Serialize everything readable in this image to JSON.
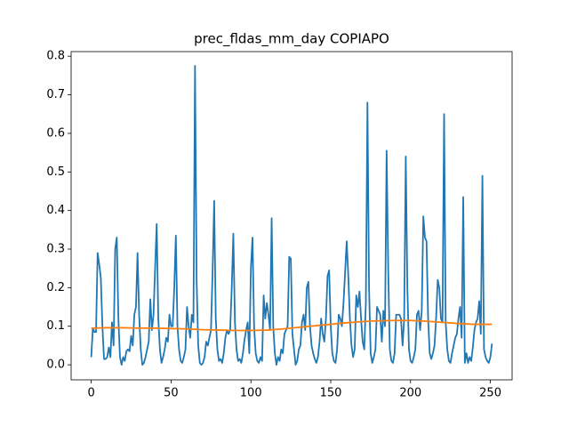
{
  "chart_data": {
    "type": "line",
    "title": "prec_fldas_mm_day COPIAPO",
    "xlim": [
      -12.6,
      263.6
    ],
    "xticks": [
      0,
      50,
      100,
      150,
      200,
      250
    ],
    "ylim": [
      -0.039,
      0.812
    ],
    "yticks": [
      {
        "value": 0,
        "label": "0.0"
      },
      0.1,
      0.2,
      0.3,
      0.4,
      0.5,
      0.6,
      0.7,
      0.8
    ],
    "series": [
      {
        "color": "#1f77b4",
        "x": [
          0,
          1,
          2,
          3,
          4,
          5,
          6,
          7,
          8,
          9,
          10,
          11,
          12,
          13,
          14,
          15,
          16,
          17,
          18,
          19,
          20,
          21,
          22,
          23,
          24,
          25,
          26,
          27,
          28,
          29,
          30,
          31,
          32,
          33,
          34,
          35,
          36,
          37,
          38,
          39,
          40,
          41,
          42,
          43,
          44,
          45,
          46,
          47,
          48,
          49,
          50,
          51,
          52,
          53,
          54,
          55,
          56,
          57,
          58,
          59,
          60,
          61,
          62,
          63,
          64,
          65,
          66,
          67,
          68,
          69,
          70,
          71,
          72,
          73,
          74,
          75,
          76,
          77,
          78,
          79,
          80,
          81,
          82,
          83,
          84,
          85,
          86,
          87,
          88,
          89,
          90,
          91,
          92,
          93,
          94,
          95,
          96,
          97,
          98,
          99,
          100,
          101,
          102,
          103,
          104,
          105,
          106,
          107,
          108,
          109,
          110,
          111,
          112,
          113,
          114,
          115,
          116,
          117,
          118,
          119,
          120,
          121,
          122,
          123,
          124,
          125,
          126,
          127,
          128,
          129,
          130,
          131,
          132,
          133,
          134,
          135,
          136,
          137,
          138,
          139,
          140,
          141,
          142,
          143,
          144,
          145,
          146,
          147,
          148,
          149,
          150,
          151,
          152,
          153,
          154,
          155,
          156,
          157,
          158,
          159,
          160,
          161,
          162,
          163,
          164,
          165,
          166,
          167,
          168,
          169,
          170,
          171,
          172,
          173,
          174,
          175,
          176,
          177,
          178,
          179,
          180,
          181,
          182,
          183,
          184,
          185,
          186,
          187,
          188,
          189,
          190,
          191,
          192,
          193,
          194,
          195,
          196,
          197,
          198,
          199,
          200,
          201,
          202,
          203,
          204,
          205,
          206,
          207,
          208,
          209,
          210,
          211,
          212,
          213,
          214,
          215,
          216,
          217,
          218,
          219,
          220,
          221,
          222,
          223,
          224,
          225,
          226,
          227,
          228,
          229,
          230,
          231,
          232,
          233,
          234,
          235,
          236,
          237,
          238,
          239,
          240,
          241,
          242,
          243,
          244,
          245,
          246,
          247,
          248,
          249,
          250,
          251
        ],
        "values": [
          0.02,
          0.095,
          0.085,
          0.085,
          0.29,
          0.26,
          0.225,
          0.1,
          0.015,
          0.015,
          0.02,
          0.045,
          0.02,
          0.11,
          0.05,
          0.3,
          0.33,
          0.12,
          0.02,
          0.0,
          0.02,
          0.01,
          0.035,
          0.04,
          0.035,
          0.075,
          0.05,
          0.13,
          0.15,
          0.29,
          0.13,
          0.04,
          0.0,
          0.005,
          0.02,
          0.04,
          0.06,
          0.17,
          0.09,
          0.13,
          0.25,
          0.365,
          0.12,
          0.04,
          0.005,
          0.02,
          0.04,
          0.07,
          0.06,
          0.13,
          0.1,
          0.1,
          0.2,
          0.335,
          0.1,
          0.04,
          0.01,
          0.005,
          0.02,
          0.04,
          0.15,
          0.1,
          0.07,
          0.13,
          0.11,
          0.775,
          0.22,
          0.05,
          0.005,
          0.0,
          0.005,
          0.02,
          0.06,
          0.05,
          0.07,
          0.09,
          0.24,
          0.425,
          0.12,
          0.04,
          0.01,
          0.015,
          0.005,
          0.03,
          0.07,
          0.09,
          0.08,
          0.09,
          0.2,
          0.34,
          0.11,
          0.04,
          0.01,
          0.015,
          0.005,
          0.03,
          0.065,
          0.09,
          0.11,
          0.03,
          0.25,
          0.33,
          0.1,
          0.03,
          0.01,
          0.005,
          0.02,
          0.01,
          0.18,
          0.12,
          0.16,
          0.13,
          0.09,
          0.38,
          0.1,
          0.03,
          0.0,
          0.02,
          0.01,
          0.04,
          0.03,
          0.08,
          0.09,
          0.1,
          0.28,
          0.275,
          0.08,
          0.04,
          0.0,
          0.01,
          0.04,
          0.05,
          0.11,
          0.13,
          0.09,
          0.2,
          0.215,
          0.1,
          0.05,
          0.03,
          0.015,
          0.005,
          0.02,
          0.06,
          0.12,
          0.08,
          0.06,
          0.12,
          0.23,
          0.245,
          0.1,
          0.03,
          0.01,
          0.005,
          0.04,
          0.13,
          0.12,
          0.1,
          0.16,
          0.24,
          0.32,
          0.23,
          0.12,
          0.05,
          0.02,
          0.04,
          0.18,
          0.15,
          0.19,
          0.12,
          0.06,
          0.04,
          0.16,
          0.68,
          0.2,
          0.03,
          0.005,
          0.02,
          0.04,
          0.15,
          0.14,
          0.13,
          0.06,
          0.14,
          0.1,
          0.555,
          0.25,
          0.04,
          0.01,
          0.005,
          0.03,
          0.13,
          0.13,
          0.13,
          0.12,
          0.05,
          0.12,
          0.54,
          0.2,
          0.04,
          0.01,
          0.005,
          0.02,
          0.04,
          0.13,
          0.14,
          0.09,
          0.14,
          0.385,
          0.33,
          0.32,
          0.12,
          0.03,
          0.015,
          0.03,
          0.05,
          0.12,
          0.22,
          0.2,
          0.12,
          0.11,
          0.65,
          0.11,
          0.04,
          0.01,
          0.005,
          0.03,
          0.05,
          0.07,
          0.08,
          0.12,
          0.15,
          0.07,
          0.435,
          0.005,
          0.03,
          0.005,
          0.02,
          0.01,
          0.045,
          0.09,
          0.11,
          0.12,
          0.165,
          0.08,
          0.49,
          0.04,
          0.02,
          0.01,
          0.005,
          0.02,
          0.055
        ]
      },
      {
        "color": "#ff7f0e",
        "x": [
          0,
          10,
          20,
          30,
          40,
          50,
          60,
          70,
          80,
          90,
          100,
          110,
          120,
          130,
          140,
          150,
          160,
          170,
          180,
          190,
          200,
          210,
          220,
          230,
          240,
          251
        ],
        "values": [
          0.095,
          0.096,
          0.096,
          0.095,
          0.095,
          0.094,
          0.093,
          0.091,
          0.09,
          0.089,
          0.089,
          0.09,
          0.093,
          0.097,
          0.101,
          0.105,
          0.109,
          0.112,
          0.114,
          0.115,
          0.115,
          0.113,
          0.11,
          0.107,
          0.105,
          0.105
        ]
      }
    ]
  }
}
